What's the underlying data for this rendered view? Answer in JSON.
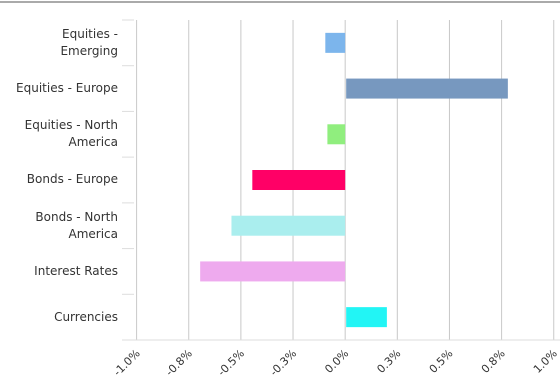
{
  "chart_data": {
    "type": "bar",
    "orientation": "horizontal",
    "categories": [
      "Equities - Emerging",
      "Equities - Europe",
      "Equities - North America",
      "Bonds - Europe",
      "Bonds - North America",
      "Interest Rates",
      "Currencies"
    ],
    "series": [
      {
        "values": [
          -0.1,
          0.78,
          -0.09,
          -0.45,
          -0.55,
          -0.7,
          0.2
        ],
        "colors": [
          "#7cb5ec",
          "#7798bf",
          "#90ee7e",
          "#ff0066",
          "#aaeeee",
          "#eeaaee",
          "#22f5f5"
        ]
      }
    ],
    "xlim": [
      -1.07,
      1.03
    ],
    "xticks": [
      {
        "value": -1.0,
        "label": "-1.0%"
      },
      {
        "value": -0.75,
        "label": "-0.8%"
      },
      {
        "value": -0.5,
        "label": "-0.5%"
      },
      {
        "value": -0.25,
        "label": "-0.3%"
      },
      {
        "value": 0,
        "label": "0.0%"
      },
      {
        "value": 0.25,
        "label": "0.3%"
      },
      {
        "value": 0.5,
        "label": "0.5%"
      },
      {
        "value": 0.75,
        "label": "0.8%"
      },
      {
        "value": 1.0,
        "label": "1.0%"
      }
    ],
    "grid": true
  }
}
